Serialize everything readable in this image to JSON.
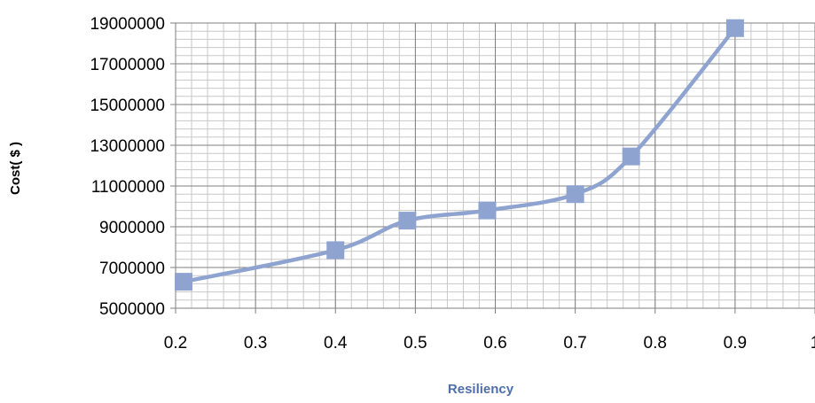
{
  "chart_data": {
    "type": "line",
    "title": "",
    "xlabel": "Resiliency",
    "ylabel": "Cost( $ )",
    "xlim": [
      0.2,
      1.0
    ],
    "ylim": [
      5000000,
      19000000
    ],
    "x_ticks": [
      "0.2",
      "0.3",
      "0.4",
      "0.5",
      "0.6",
      "0.7",
      "0.8",
      "0.9",
      "1"
    ],
    "y_ticks": [
      "5000000",
      "7000000",
      "9000000",
      "11000000",
      "13000000",
      "15000000",
      "17000000",
      "19000000"
    ],
    "grid": true,
    "legend": "none",
    "series": [
      {
        "color": "#8ea3cf",
        "marker": "square",
        "x": [
          0.21,
          0.4,
          0.49,
          0.59,
          0.7,
          0.77,
          0.9
        ],
        "y": [
          6300000,
          7850000,
          9300000,
          9800000,
          10600000,
          12450000,
          18750000
        ]
      }
    ]
  }
}
